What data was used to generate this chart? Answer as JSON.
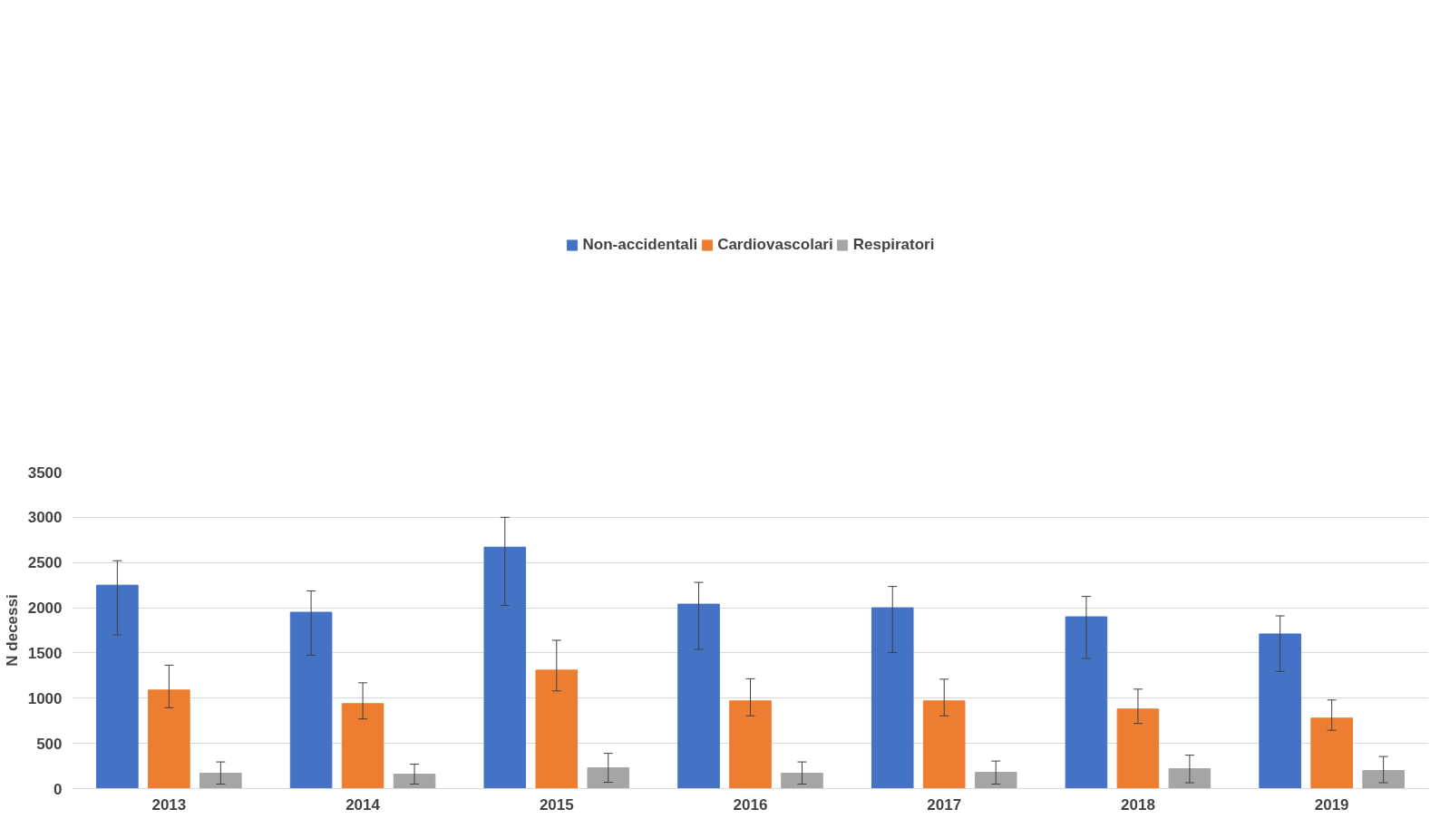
{
  "chart_data": {
    "type": "bar",
    "ylabel": "N decessi",
    "categories": [
      "2013",
      "2014",
      "2015",
      "2016",
      "2017",
      "2018",
      "2019"
    ],
    "series": [
      {
        "name": "Non-accidentali",
        "color": "#4472c4",
        "values": [
          2250,
          1950,
          2670,
          2040,
          2000,
          1900,
          1710
        ],
        "errors": [
          [
            1700,
            2520
          ],
          [
            1475,
            2185
          ],
          [
            2025,
            3000
          ],
          [
            1540,
            2280
          ],
          [
            1505,
            2235
          ],
          [
            1440,
            2125
          ],
          [
            1295,
            1910
          ]
        ]
      },
      {
        "name": "Cardiovascolari",
        "color": "#ed7d31",
        "values": [
          1090,
          940,
          1310,
          970,
          970,
          880,
          780
        ],
        "errors": [
          [
            895,
            1365
          ],
          [
            770,
            1170
          ],
          [
            1080,
            1640
          ],
          [
            805,
            1215
          ],
          [
            805,
            1210
          ],
          [
            720,
            1100
          ],
          [
            645,
            980
          ]
        ]
      },
      {
        "name": "Respiratori",
        "color": "#a5a5a5",
        "values": [
          170,
          160,
          230,
          170,
          180,
          220,
          200
        ],
        "errors": [
          [
            50,
            295
          ],
          [
            50,
            270
          ],
          [
            70,
            390
          ],
          [
            50,
            295
          ],
          [
            50,
            305
          ],
          [
            65,
            370
          ],
          [
            65,
            355
          ]
        ]
      }
    ],
    "ylim": [
      0,
      3500
    ],
    "yticks": [
      0,
      500,
      1000,
      1500,
      2000,
      2500,
      3000,
      3500
    ],
    "grid": "y",
    "legend": "top"
  }
}
